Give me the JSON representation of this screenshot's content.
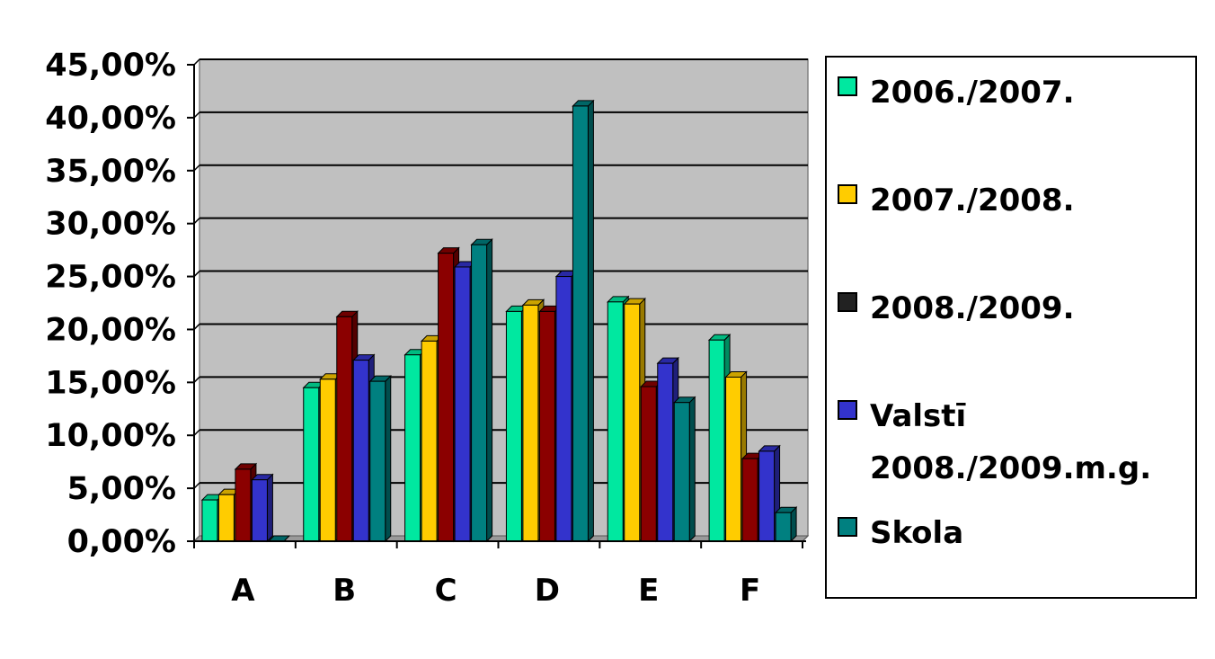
{
  "chart_data": {
    "type": "bar",
    "categories": [
      "A",
      "B",
      "C",
      "D",
      "E",
      "F"
    ],
    "series": [
      {
        "name": "2006./2007.",
        "color": "#00e8a0",
        "values": [
          3.9,
          14.5,
          17.6,
          21.7,
          22.6,
          19.0
        ]
      },
      {
        "name": "2007./2008.",
        "color": "#ffcc00",
        "values": [
          4.4,
          15.3,
          18.9,
          22.3,
          22.4,
          15.5
        ]
      },
      {
        "name": "2008./2009.",
        "color": "#8b0000",
        "values": [
          6.8,
          21.2,
          27.2,
          21.7,
          14.6,
          7.8
        ]
      },
      {
        "name": "Valstī\n2008./2009.m.g.",
        "color": "#3333cc",
        "values": [
          5.8,
          17.1,
          25.9,
          25.0,
          16.8,
          8.5
        ]
      },
      {
        "name": "Skola",
        "color": "#008080",
        "values": [
          0.0,
          15.1,
          28.0,
          41.1,
          13.1,
          2.7
        ]
      }
    ],
    "y_ticks": [
      "0,00%",
      "5,00%",
      "10,00%",
      "15,00%",
      "20,00%",
      "25,00%",
      "30,00%",
      "35,00%",
      "40,00%",
      "45,00%"
    ],
    "ylim": [
      0,
      45
    ],
    "grid": true,
    "legend_position": "right",
    "legend_swatch_colors": [
      "#00e8a0",
      "#ffcc00",
      "#222222",
      "#3333cc",
      "#008080"
    ],
    "plot_background": "#c0c0c0"
  }
}
